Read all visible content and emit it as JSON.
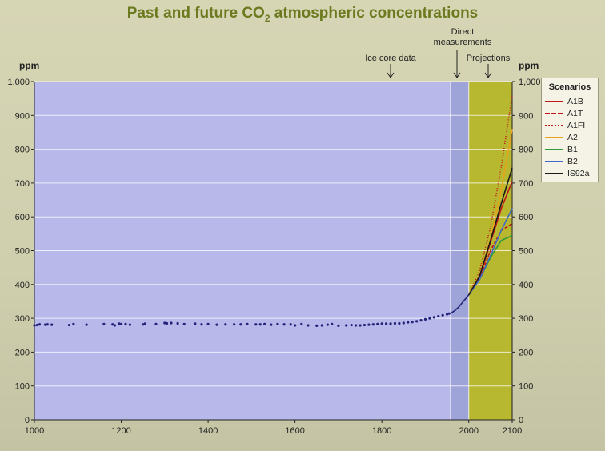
{
  "title": {
    "main": "Past and future CO",
    "sub": "2",
    "rest": " atmospheric concentrations"
  },
  "unit_left": "ppm",
  "unit_right": "ppm",
  "annotations": {
    "ice_core": "Ice core data",
    "direct_1": "Direct",
    "direct_2": "measurements",
    "projections": "Projections"
  },
  "legend_title": "Scenarios",
  "colors": {
    "ice_core_band": "#b8b9ea",
    "direct_band": "#9fa4d8",
    "projection_band": "#b7b830",
    "points": "#22227a"
  },
  "chart_data": {
    "type": "line",
    "title": "Past and future CO2 atmospheric concentrations",
    "ylabel": "ppm",
    "xlim": [
      1000,
      2100
    ],
    "ylim": [
      0,
      1000
    ],
    "x_ticks": [
      1000,
      1200,
      1400,
      1600,
      1800,
      2000,
      2100
    ],
    "y_ticks_left": [
      0,
      100,
      200,
      300,
      400,
      500,
      600,
      700,
      800,
      900,
      1000
    ],
    "y_ticks_left_labels": [
      "0",
      "100",
      "200",
      "300",
      "400",
      "500",
      "600",
      "700",
      "800",
      "900",
      "1,000"
    ],
    "y_ticks_right": [
      0,
      100,
      200,
      300,
      400,
      500,
      600,
      700,
      800,
      900,
      1000
    ],
    "y_ticks_right_labels": [
      "0",
      "100",
      "200",
      "300",
      "400",
      "500",
      "600",
      "700",
      "800",
      "900",
      "1,000"
    ],
    "regions": [
      {
        "label": "Ice core data",
        "from": 1000,
        "to": 1958
      },
      {
        "label": "Direct measurements",
        "from": 1958,
        "to": 2000
      },
      {
        "label": "Projections",
        "from": 2000,
        "to": 2100
      }
    ],
    "grid": true,
    "ice_core_points": [
      [
        1000,
        279
      ],
      [
        1006,
        280
      ],
      [
        1012,
        282
      ],
      [
        1025,
        281
      ],
      [
        1030,
        282
      ],
      [
        1040,
        281
      ],
      [
        1080,
        280
      ],
      [
        1090,
        283
      ],
      [
        1120,
        281
      ],
      [
        1160,
        283
      ],
      [
        1180,
        282
      ],
      [
        1185,
        279
      ],
      [
        1195,
        284
      ],
      [
        1200,
        283
      ],
      [
        1210,
        283
      ],
      [
        1220,
        281
      ],
      [
        1250,
        282
      ],
      [
        1255,
        284
      ],
      [
        1280,
        283
      ],
      [
        1300,
        286
      ],
      [
        1305,
        285
      ],
      [
        1315,
        286
      ],
      [
        1330,
        285
      ],
      [
        1345,
        283
      ],
      [
        1370,
        284
      ],
      [
        1385,
        282
      ],
      [
        1400,
        283
      ],
      [
        1420,
        281
      ],
      [
        1440,
        282
      ],
      [
        1460,
        282
      ],
      [
        1475,
        282
      ],
      [
        1490,
        283
      ],
      [
        1510,
        282
      ],
      [
        1520,
        282
      ],
      [
        1530,
        283
      ],
      [
        1545,
        281
      ],
      [
        1560,
        283
      ],
      [
        1575,
        282
      ],
      [
        1590,
        282
      ],
      [
        1600,
        279
      ],
      [
        1615,
        283
      ],
      [
        1630,
        279
      ],
      [
        1650,
        278
      ],
      [
        1662,
        279
      ],
      [
        1675,
        281
      ],
      [
        1685,
        283
      ],
      [
        1700,
        278
      ],
      [
        1718,
        279
      ],
      [
        1730,
        280
      ],
      [
        1740,
        279
      ],
      [
        1750,
        279
      ],
      [
        1760,
        280
      ],
      [
        1770,
        281
      ],
      [
        1780,
        282
      ],
      [
        1790,
        283
      ],
      [
        1800,
        284
      ],
      [
        1810,
        284
      ],
      [
        1820,
        284
      ],
      [
        1830,
        285
      ],
      [
        1840,
        285
      ],
      [
        1850,
        286
      ],
      [
        1860,
        288
      ],
      [
        1870,
        289
      ],
      [
        1880,
        291
      ],
      [
        1890,
        294
      ],
      [
        1900,
        297
      ],
      [
        1910,
        300
      ],
      [
        1920,
        303
      ],
      [
        1930,
        306
      ],
      [
        1940,
        309
      ],
      [
        1950,
        312
      ],
      [
        1955,
        314
      ]
    ],
    "direct_measurements": {
      "x": [
        1958,
        1965,
        1970,
        1975,
        1980,
        1985,
        1990,
        1995,
        2000
      ],
      "y": [
        315,
        320,
        325,
        331,
        338,
        346,
        354,
        361,
        369
      ]
    },
    "series": [
      {
        "name": "A1B",
        "color": "#c01818",
        "dash": "",
        "x": [
          2000,
          2025,
          2050,
          2075,
          2100
        ],
        "y": [
          369,
          420,
          525,
          625,
          705
        ]
      },
      {
        "name": "A1T",
        "color": "#c01818",
        "dash": "4,2",
        "x": [
          2000,
          2025,
          2050,
          2075,
          2100
        ],
        "y": [
          369,
          418,
          500,
          560,
          580
        ]
      },
      {
        "name": "A1FI",
        "color": "#c01818",
        "dash": "1,2",
        "x": [
          2000,
          2025,
          2050,
          2075,
          2100
        ],
        "y": [
          369,
          440,
          570,
          750,
          960
        ]
      },
      {
        "name": "A2",
        "color": "#e8a21c",
        "dash": "",
        "x": [
          2000,
          2025,
          2050,
          2075,
          2100
        ],
        "y": [
          369,
          428,
          535,
          680,
          860
        ]
      },
      {
        "name": "B1",
        "color": "#2f9b3a",
        "dash": "",
        "x": [
          2000,
          2025,
          2050,
          2075,
          2100
        ],
        "y": [
          369,
          415,
          480,
          530,
          545
        ]
      },
      {
        "name": "B2",
        "color": "#4169c9",
        "dash": "",
        "x": [
          2000,
          2025,
          2050,
          2075,
          2100
        ],
        "y": [
          369,
          415,
          485,
          560,
          625
        ]
      },
      {
        "name": "IS92a",
        "color": "#1a1a1a",
        "dash": "",
        "x": [
          2000,
          2025,
          2050,
          2075,
          2100
        ],
        "y": [
          369,
          425,
          530,
          640,
          745
        ]
      }
    ]
  }
}
